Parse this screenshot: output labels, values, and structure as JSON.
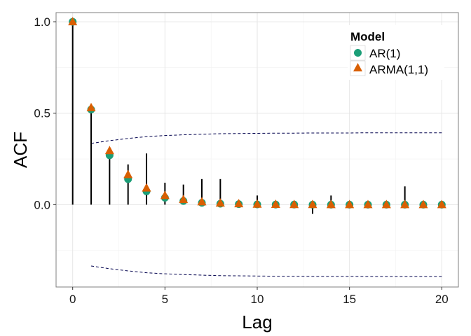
{
  "chart_data": {
    "type": "scatter",
    "title": "",
    "xlabel": "Lag",
    "ylabel": "ACF",
    "xlim": [
      -0.9,
      20.9
    ],
    "ylim": [
      -0.45,
      1.05
    ],
    "x_ticks": [
      "0",
      "5",
      "10",
      "15",
      "20"
    ],
    "y_ticks": [
      "0.0",
      "0.5",
      "1.0"
    ],
    "grid": true,
    "legend": {
      "title": "Model",
      "position": "top-right"
    },
    "colors": {
      "ar": "#1b9e77",
      "arma": "#d95f02",
      "stem": "#000000",
      "band": "#00004d",
      "grid": "#e6e6e6",
      "panel_border": "#7f7f7f"
    },
    "sample_acf": {
      "lags": [
        0,
        1,
        2,
        3,
        4,
        5,
        6,
        7,
        8,
        9,
        10,
        11,
        12,
        13,
        14,
        15,
        16,
        17,
        18,
        19,
        20
      ],
      "values": [
        1.0,
        0.52,
        0.28,
        0.22,
        0.28,
        0.12,
        0.11,
        0.14,
        0.14,
        0.02,
        0.05,
        0.02,
        0.02,
        -0.05,
        0.05,
        0.01,
        0.01,
        0.01,
        0.1,
        0.01,
        0.01
      ]
    },
    "confidence_band": {
      "lags": [
        1,
        2,
        3,
        4,
        5,
        6,
        7,
        8,
        9,
        10,
        11,
        12,
        13,
        14,
        15,
        16,
        17,
        18,
        19,
        20
      ],
      "upper": [
        0.335,
        0.35,
        0.362,
        0.372,
        0.378,
        0.382,
        0.385,
        0.388,
        0.389,
        0.39,
        0.391,
        0.391,
        0.392,
        0.392,
        0.392,
        0.393,
        0.393,
        0.393,
        0.393,
        0.393
      ],
      "lower": [
        -0.335,
        -0.35,
        -0.362,
        -0.372,
        -0.378,
        -0.382,
        -0.385,
        -0.388,
        -0.389,
        -0.39,
        -0.391,
        -0.391,
        -0.392,
        -0.392,
        -0.392,
        -0.393,
        -0.393,
        -0.393,
        -0.393,
        -0.393
      ]
    },
    "series": [
      {
        "name": "AR(1)",
        "marker": "circle",
        "x": [
          0,
          1,
          2,
          3,
          4,
          5,
          6,
          7,
          8,
          9,
          10,
          11,
          12,
          13,
          14,
          15,
          16,
          17,
          18,
          19,
          20
        ],
        "y": [
          1.0,
          0.52,
          0.27,
          0.14,
          0.073,
          0.038,
          0.02,
          0.0103,
          0.0054,
          0.0028,
          0.0015,
          0.0008,
          0.0004,
          0.0002,
          0.0001,
          0.0,
          0.0,
          0.0,
          0.0,
          0.0,
          0.0
        ]
      },
      {
        "name": "ARMA(1,1)",
        "marker": "triangle",
        "x": [
          0,
          1,
          2,
          3,
          4,
          5,
          6,
          7,
          8,
          9,
          10,
          11,
          12,
          13,
          14,
          15,
          16,
          17,
          18,
          19,
          20
        ],
        "y": [
          1.0,
          0.53,
          0.295,
          0.164,
          0.091,
          0.05,
          0.028,
          0.0155,
          0.0086,
          0.0048,
          0.0027,
          0.0015,
          0.0008,
          0.0005,
          0.0003,
          0.0001,
          0.0,
          0.0,
          0.0,
          0.0,
          0.0
        ]
      }
    ]
  }
}
